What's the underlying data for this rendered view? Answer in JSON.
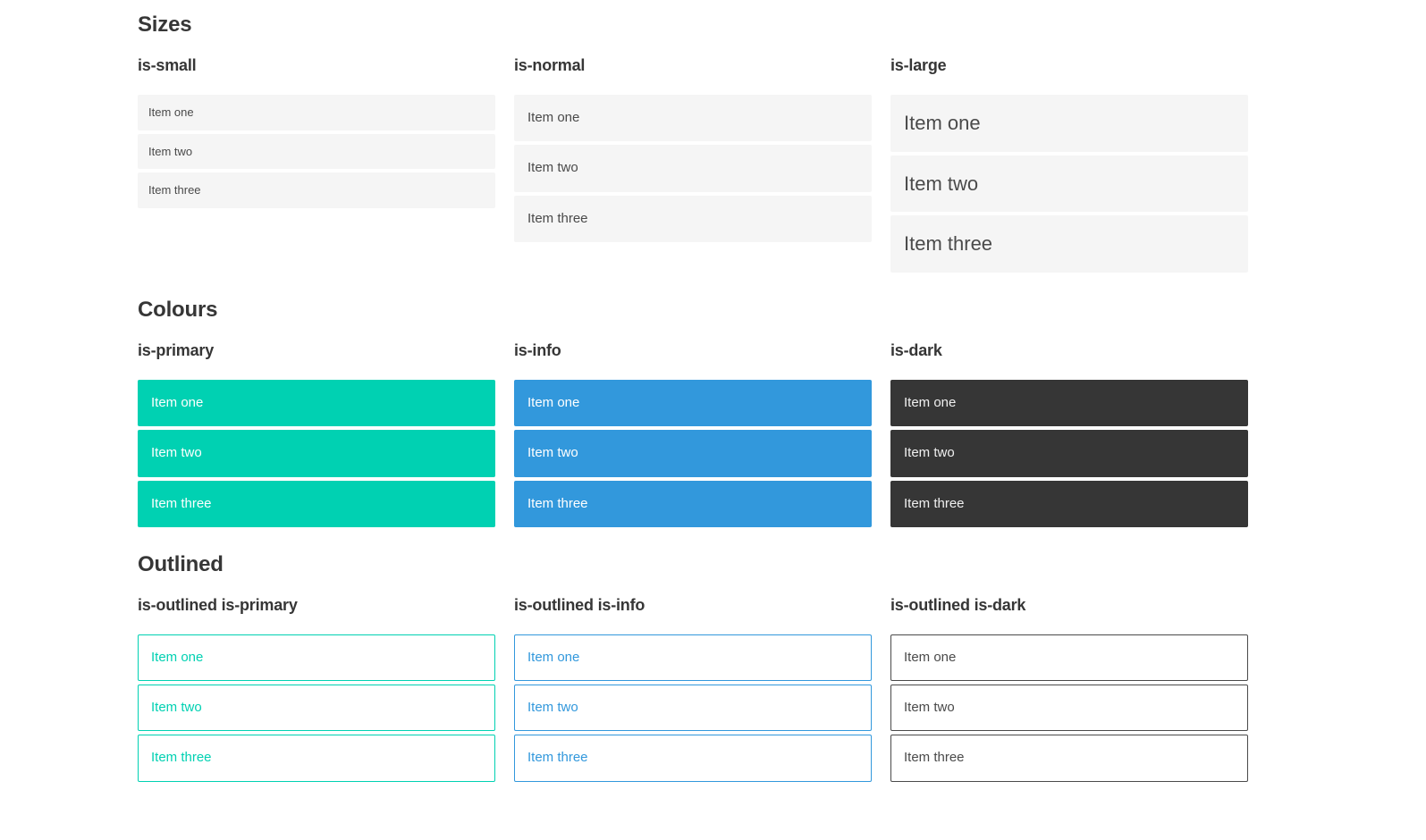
{
  "colors": {
    "primary": "#00d1b2",
    "info": "#3298dc",
    "dark": "#363636",
    "item_background": "#f5f5f5",
    "item_text": "#4a4a4a",
    "heading_text": "#363636",
    "page_background": "#ffffff"
  },
  "sections": [
    {
      "title": "Sizes",
      "groups": [
        {
          "label": "is-small",
          "items": [
            "Item one",
            "Item two",
            "Item three"
          ]
        },
        {
          "label": "is-normal",
          "items": [
            "Item one",
            "Item two",
            "Item three"
          ]
        },
        {
          "label": "is-large",
          "items": [
            "Item one",
            "Item two",
            "Item three"
          ]
        }
      ]
    },
    {
      "title": "Colours",
      "groups": [
        {
          "label": "is-primary",
          "items": [
            "Item one",
            "Item two",
            "Item three"
          ]
        },
        {
          "label": "is-info",
          "items": [
            "Item one",
            "Item two",
            "Item three"
          ]
        },
        {
          "label": "is-dark",
          "items": [
            "Item one",
            "Item two",
            "Item three"
          ]
        }
      ]
    },
    {
      "title": "Outlined",
      "groups": [
        {
          "label": "is-outlined is-primary",
          "items": [
            "Item one",
            "Item two",
            "Item three"
          ]
        },
        {
          "label": "is-outlined is-info",
          "items": [
            "Item one",
            "Item two",
            "Item three"
          ]
        },
        {
          "label": "is-outlined is-dark",
          "items": [
            "Item one",
            "Item two",
            "Item three"
          ]
        }
      ]
    }
  ]
}
